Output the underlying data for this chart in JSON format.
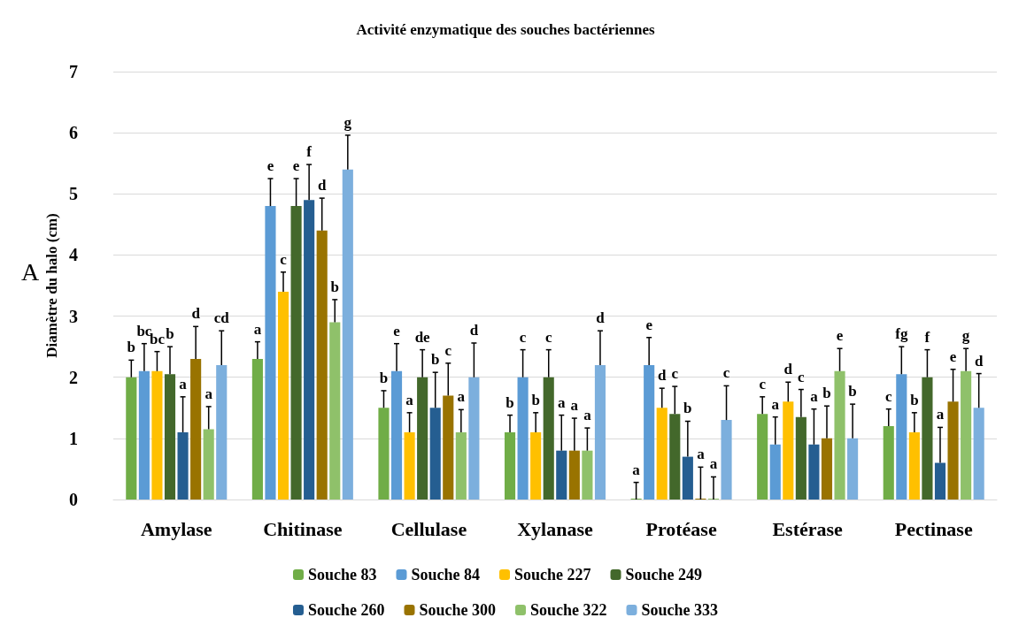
{
  "chart_data": {
    "type": "bar",
    "title": "Activité enzymatique des souches bactériennes",
    "ylabel": "Diamètre du halo (cm)",
    "annotations": [
      "A"
    ],
    "categories": [
      "Amylase",
      "Chitinase",
      "Cellulase",
      "Xylanase",
      "Protéase",
      "Estérase",
      "Pectinase"
    ],
    "ylim": [
      0,
      7
    ],
    "yticks": [
      0,
      1,
      2,
      3,
      4,
      5,
      6,
      7
    ],
    "grid": "y",
    "legend": "bottom",
    "series": [
      {
        "name": "Souche 83",
        "color": "#70ad47",
        "values": [
          2.0,
          2.3,
          1.5,
          1.1,
          0,
          1.4,
          1.2
        ],
        "errors": [
          0.28,
          0.28,
          0.28,
          0.28,
          0.28,
          0.28,
          0.28
        ],
        "value_labels": [
          "b",
          "a",
          "b",
          "b",
          "a",
          "c",
          "c"
        ]
      },
      {
        "name": "Souche 84",
        "color": "#5b9bd5",
        "values": [
          2.1,
          4.8,
          2.1,
          2.0,
          2.2,
          0.9,
          2.05
        ],
        "errors": [
          0.45,
          0.45,
          0.45,
          0.45,
          0.45,
          0.45,
          0.45
        ],
        "value_labels": [
          "bc",
          "e",
          "e",
          "c",
          "e",
          "a",
          "fg"
        ]
      },
      {
        "name": "Souche 227",
        "color": "#ffc000",
        "values": [
          2.1,
          3.4,
          1.1,
          1.1,
          1.5,
          1.6,
          1.1
        ],
        "errors": [
          0.32,
          0.32,
          0.32,
          0.32,
          0.32,
          0.32,
          0.32
        ],
        "value_labels": [
          "bc",
          "c",
          "a",
          "b",
          "d",
          "d",
          "b"
        ]
      },
      {
        "name": "Souche 249",
        "color": "#43682b",
        "values": [
          2.05,
          4.8,
          2.0,
          2.0,
          1.4,
          1.35,
          2.0
        ],
        "errors": [
          0.45,
          0.45,
          0.45,
          0.45,
          0.45,
          0.45,
          0.45
        ],
        "value_labels": [
          "b",
          "e",
          "de",
          "c",
          "c",
          "c",
          "f"
        ]
      },
      {
        "name": "Souche 260",
        "color": "#255e91",
        "values": [
          1.1,
          4.9,
          1.5,
          0.8,
          0.7,
          0.9,
          0.6
        ],
        "errors": [
          0.58,
          0.58,
          0.58,
          0.58,
          0.58,
          0.58,
          0.58
        ],
        "value_labels": [
          "a",
          "f",
          "b",
          "a",
          "b",
          "a",
          "a"
        ]
      },
      {
        "name": "Souche 300",
        "color": "#997300",
        "values": [
          2.3,
          4.4,
          1.7,
          0.8,
          0,
          1.0,
          1.6
        ],
        "errors": [
          0.53,
          0.53,
          0.53,
          0.53,
          0.53,
          0.53,
          0.53
        ],
        "value_labels": [
          "d",
          "d",
          "c",
          "a",
          "a",
          "b",
          "e"
        ]
      },
      {
        "name": "Souche 322",
        "color": "#8fc16a",
        "values": [
          1.15,
          2.9,
          1.1,
          0.8,
          0,
          2.1,
          2.1
        ],
        "errors": [
          0.37,
          0.37,
          0.37,
          0.37,
          0.37,
          0.37,
          0.37
        ],
        "value_labels": [
          "a",
          "b",
          "a",
          "a",
          "a",
          "e",
          "g"
        ]
      },
      {
        "name": "Souche 333",
        "color": "#7cafdd",
        "values": [
          2.2,
          5.4,
          2.0,
          2.2,
          1.3,
          1.0,
          1.5
        ],
        "errors": [
          0.56,
          0.56,
          0.56,
          0.56,
          0.56,
          0.56,
          0.56
        ],
        "value_labels": [
          "cd",
          "g",
          "d",
          "d",
          "c",
          "b",
          "d"
        ]
      }
    ]
  }
}
